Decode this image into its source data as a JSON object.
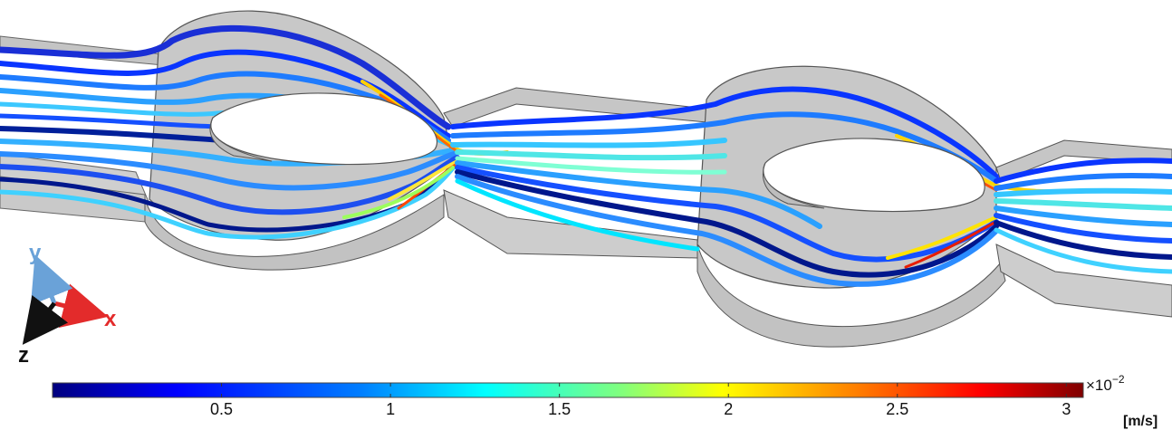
{
  "axes": {
    "x_label": "x",
    "y_label": "y",
    "z_label": "z",
    "x_color": "#e32b2b",
    "y_color": "#6aa2d8",
    "z_color": "#111111"
  },
  "colorbar": {
    "ticks": [
      "0.5",
      "1",
      "1.5",
      "2",
      "2.5",
      "3"
    ],
    "tick_values": [
      0.5,
      1,
      1.5,
      2,
      2.5,
      3
    ],
    "min": 0,
    "max": 3.05,
    "multiplier_base": "×10",
    "multiplier_exp": "−2",
    "unit": "[m/s]",
    "colormap": [
      "#00007f",
      "#0000ff",
      "#007fff",
      "#00ffff",
      "#7fff7f",
      "#ffff00",
      "#ff7f00",
      "#ff0000",
      "#7f0000"
    ]
  },
  "colors": {
    "wall_top": "#bfbfbf",
    "wall_side": "#cfcfcf",
    "edge": "#555555"
  }
}
